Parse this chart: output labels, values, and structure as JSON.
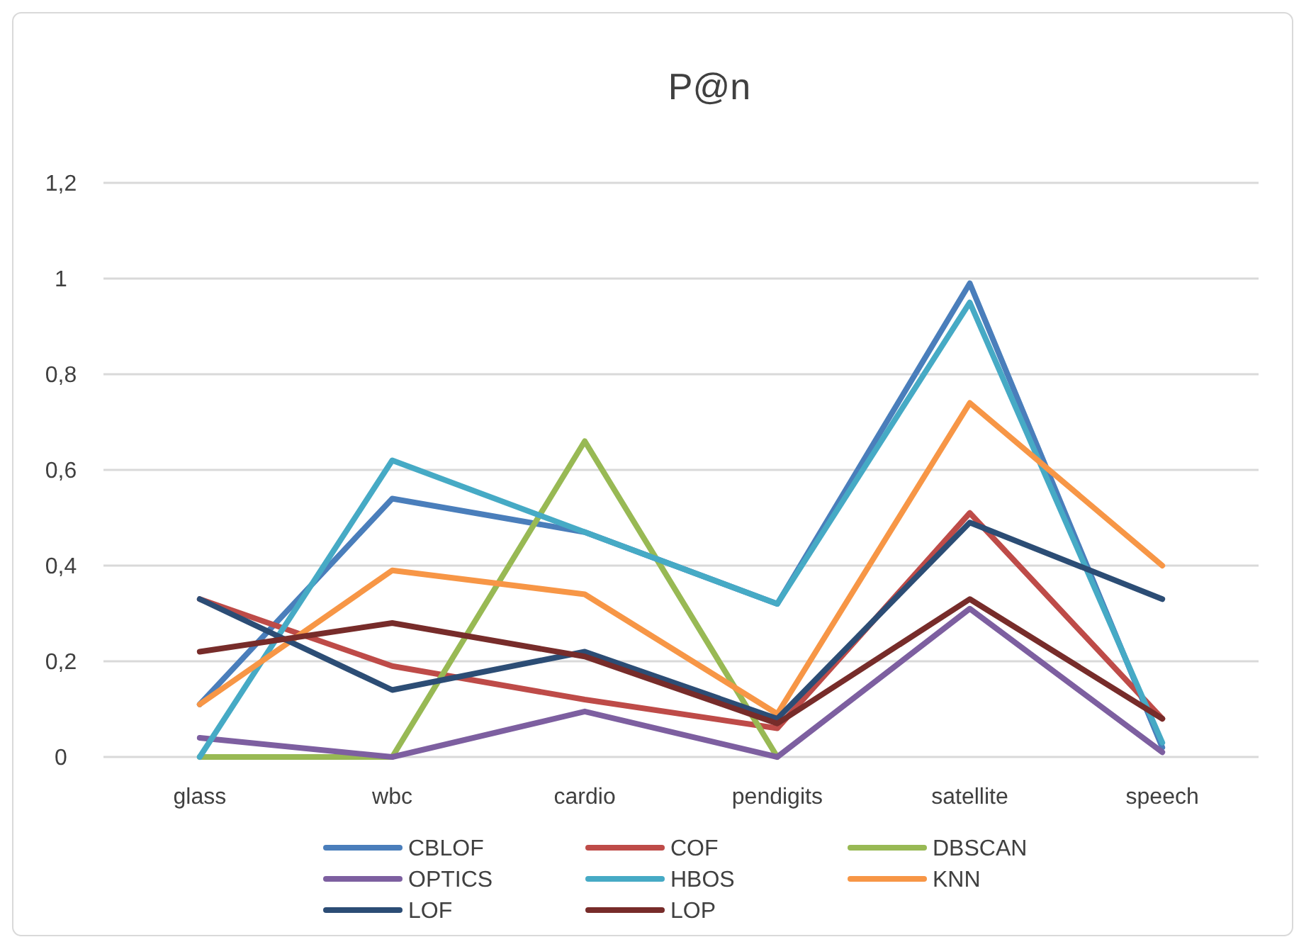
{
  "chart_data": {
    "type": "line",
    "title": "P@n",
    "categories": [
      "glass",
      "wbc",
      "cardio",
      "pendigits",
      "satellite",
      "speech"
    ],
    "series": [
      {
        "name": "CBLOF",
        "color": "#4a7ebb",
        "values": [
          0.11,
          0.54,
          0.47,
          0.32,
          0.99,
          0.02
        ]
      },
      {
        "name": "COF",
        "color": "#be4b48",
        "values": [
          0.33,
          0.19,
          0.12,
          0.06,
          0.51,
          0.08
        ]
      },
      {
        "name": "DBSCAN",
        "color": "#98b954",
        "values": [
          0,
          0,
          0.66,
          0,
          null,
          null
        ]
      },
      {
        "name": "OPTICS",
        "color": "#7d5fa0",
        "values": [
          0.04,
          0,
          0.095,
          0,
          0.31,
          0.01
        ]
      },
      {
        "name": "HBOS",
        "color": "#46aac5",
        "values": [
          0,
          0.62,
          0.47,
          0.32,
          0.95,
          0.03
        ]
      },
      {
        "name": "KNN",
        "color": "#f79646",
        "values": [
          0.11,
          0.39,
          0.34,
          0.09,
          0.74,
          0.4
        ]
      },
      {
        "name": "LOF",
        "color": "#2c4d75",
        "values": [
          0.33,
          0.14,
          0.22,
          0.08,
          0.49,
          0.33
        ]
      },
      {
        "name": "LOP",
        "color": "#772c2a",
        "values": [
          0.22,
          0.28,
          0.21,
          0.07,
          0.33,
          0.08
        ]
      }
    ],
    "ylim": [
      0,
      1.2
    ],
    "yticks": [
      {
        "value": 0,
        "label": "0"
      },
      {
        "value": 0.2,
        "label": "0,2"
      },
      {
        "value": 0.4,
        "label": "0,4"
      },
      {
        "value": 0.6,
        "label": "0,6"
      },
      {
        "value": 0.8,
        "label": "0,8"
      },
      {
        "value": 1,
        "label": "1"
      },
      {
        "value": 1.2,
        "label": "1,2"
      }
    ],
    "grid": "y",
    "legend": "bottom",
    "marker": "none",
    "line_style": "solid"
  }
}
